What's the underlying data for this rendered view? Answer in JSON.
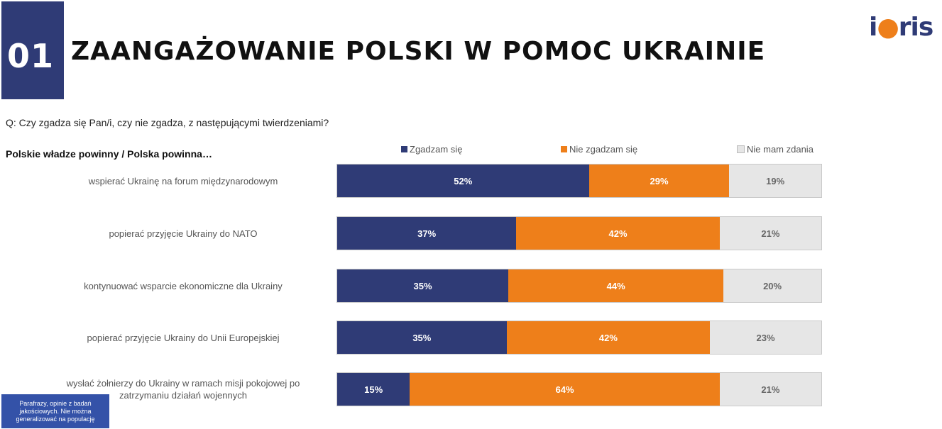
{
  "header": {
    "number": "01",
    "title": "ZAANGAŻOWANIE POLSKI W POMOC UKRAINIE",
    "logo_main": "ibris",
    "brand_color": "#2f3b76"
  },
  "question": "Q: Czy zgadza się Pan/i, czy nie zgadza, z następującymi twierdzeniami?",
  "subheading": "Polskie władze powinny / Polska powinna…",
  "note": "Parafrazy, opinie z badań jakościowych. Nie można generalizować na populację",
  "chart_data": {
    "type": "bar",
    "orientation": "horizontal",
    "stacked": true,
    "percent": true,
    "legend_position": "top",
    "categories": [
      "wspierać Ukrainę na forum międzynarodowym",
      "popierać przyjęcie Ukrainy do NATO",
      "kontynuować wsparcie ekonomiczne dla Ukrainy",
      "popierać przyjęcie Ukrainy do Unii Europejskiej",
      "wysłać żołnierzy do Ukrainy w ramach misji pokojowej po zatrzymaniu działań wojennych"
    ],
    "series": [
      {
        "name": "Zgadzam się",
        "color": "#2f3b76",
        "values": [
          52,
          37,
          35,
          35,
          15
        ],
        "labels": [
          "52%",
          "37%",
          "35%",
          "35%",
          "15%"
        ]
      },
      {
        "name": "Nie zgadzam się",
        "color": "#ee7f1a",
        "values": [
          29,
          42,
          44,
          42,
          64
        ],
        "labels": [
          "29%",
          "42%",
          "44%",
          "42%",
          "64%"
        ]
      },
      {
        "name": "Nie mam zdania",
        "color": "#e6e6e6",
        "values": [
          19,
          21,
          20,
          23,
          21
        ],
        "labels": [
          "19%",
          "21%",
          "20%",
          "23%",
          "21%"
        ]
      }
    ]
  }
}
